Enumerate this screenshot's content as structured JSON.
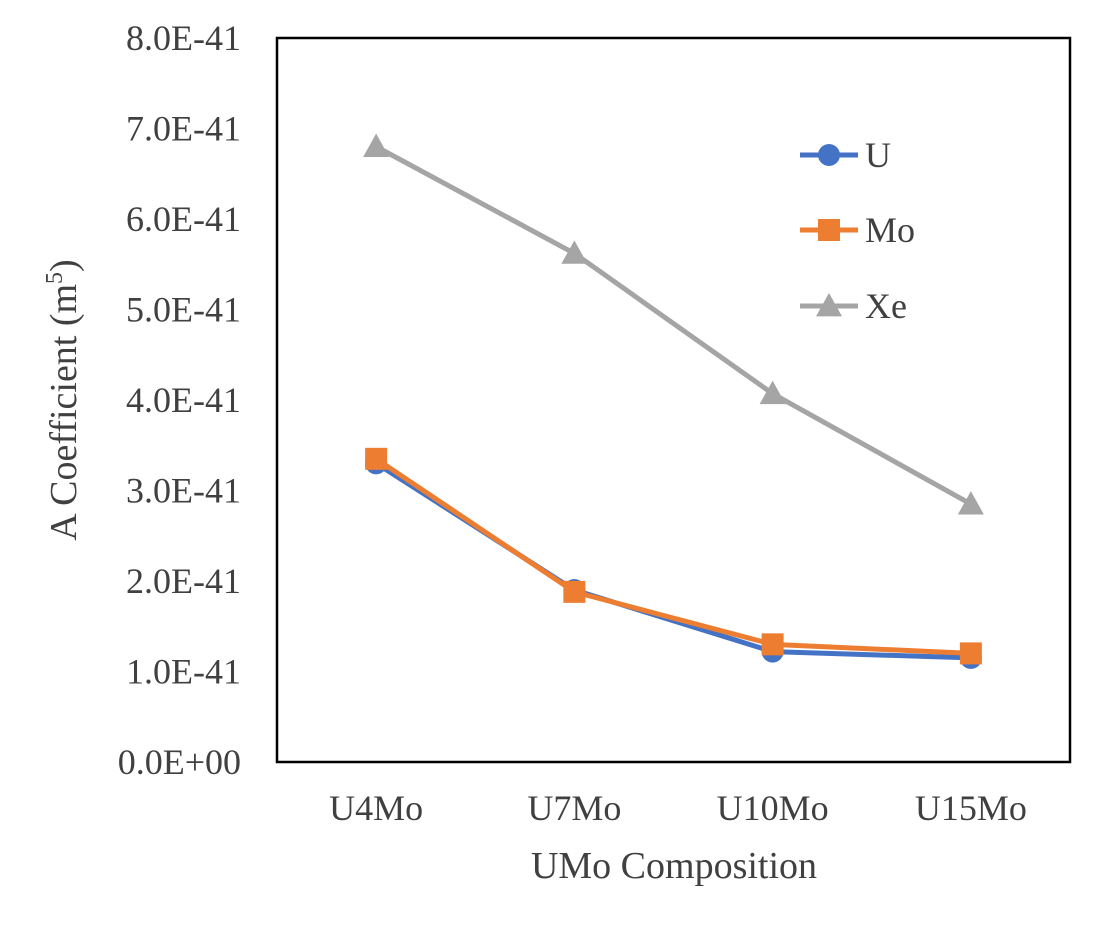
{
  "chart_data": {
    "type": "line",
    "title": "",
    "xlabel": "UMo Composition",
    "ylabel": "A Coefficient (m",
    "ylabel_superscript": "5",
    "ylabel_suffix": ")",
    "categories": [
      "U4Mo",
      "U7Mo",
      "U10Mo",
      "U15Mo"
    ],
    "ylim": [
      0,
      8e-41
    ],
    "yticks": [
      0,
      1e-41,
      2e-41,
      3e-41,
      4e-41,
      5e-41,
      6e-41,
      7e-41,
      8e-41
    ],
    "ytick_labels": [
      "0.0E+00",
      "1.0E-41",
      "2.0E-41",
      "3.0E-41",
      "4.0E-41",
      "5.0E-41",
      "6.0E-41",
      "7.0E-41",
      "8.0E-41"
    ],
    "grid": false,
    "legend_position": "top-right",
    "series": [
      {
        "name": "U",
        "color": "#4472C4",
        "marker": "circle",
        "values": [
          3.3e-41,
          1.9e-41,
          1.22e-41,
          1.15e-41
        ]
      },
      {
        "name": "Mo",
        "color": "#ED7D31",
        "marker": "square",
        "values": [
          3.35e-41,
          1.88e-41,
          1.3e-41,
          1.2e-41
        ]
      },
      {
        "name": "Xe",
        "color": "#A5A5A5",
        "marker": "triangle",
        "values": [
          6.8e-41,
          5.62e-41,
          4.07e-41,
          2.85e-41
        ]
      }
    ]
  }
}
